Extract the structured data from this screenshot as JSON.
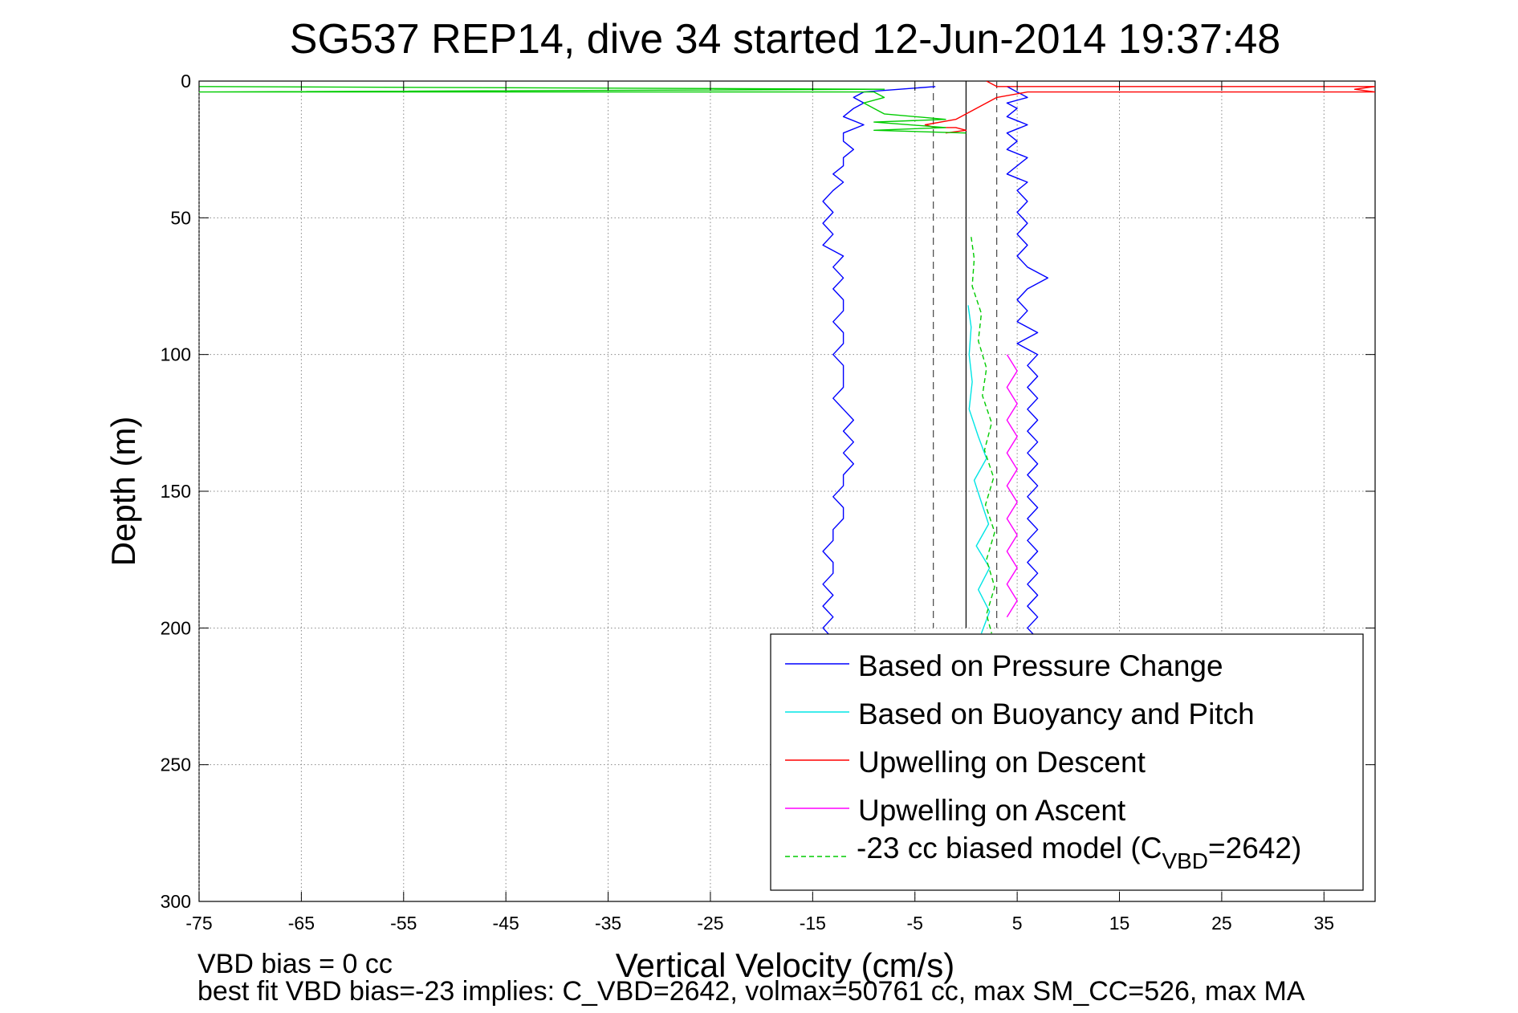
{
  "chart_data": {
    "type": "line",
    "title": "SG537 REP14, dive 34 started 12-Jun-2014 19:37:48",
    "xlabel": "Vertical Velocity (cm/s)",
    "ylabel": "Depth (m)",
    "xlim": [
      -75,
      40
    ],
    "ylim": [
      0,
      300
    ],
    "y_reversed": true,
    "grid": true,
    "x_ticks": [
      "-75",
      "-65",
      "-55",
      "-45",
      "-35",
      "-25",
      "-15",
      "-5",
      "5",
      "15",
      "25",
      "35"
    ],
    "x_tick_values": [
      -75,
      -65,
      -55,
      -45,
      -35,
      -25,
      -15,
      -5,
      5,
      15,
      25,
      35
    ],
    "y_ticks": [
      "0",
      "50",
      "100",
      "150",
      "200",
      "250",
      "300"
    ],
    "y_tick_values": [
      0,
      50,
      100,
      150,
      200,
      250,
      300
    ],
    "reference_lines": {
      "solid_x": 0,
      "dashed_x": [
        -3.2,
        3.0
      ],
      "dashed_y_range": [
        0,
        200
      ]
    },
    "legend_position": "bottom-right",
    "series": [
      {
        "name": "Based on Pressure Change",
        "color": "#0000ff",
        "style": "solid",
        "points": [
          [
            -3,
            2
          ],
          [
            -10,
            4
          ],
          [
            -11,
            6
          ],
          [
            -10,
            8
          ],
          [
            -11,
            10
          ],
          [
            -12,
            13
          ],
          [
            -10,
            16
          ],
          [
            -12,
            19
          ],
          [
            -12,
            22
          ],
          [
            -11,
            25
          ],
          [
            -12,
            28
          ],
          [
            -12,
            31
          ],
          [
            -13,
            34
          ],
          [
            -12,
            37
          ],
          [
            -13,
            40
          ],
          [
            -14,
            44
          ],
          [
            -13,
            48
          ],
          [
            -14,
            52
          ],
          [
            -13,
            56
          ],
          [
            -14,
            60
          ],
          [
            -12,
            64
          ],
          [
            -13,
            68
          ],
          [
            -12,
            72
          ],
          [
            -13,
            76
          ],
          [
            -12,
            80
          ],
          [
            -12,
            84
          ],
          [
            -13,
            88
          ],
          [
            -12,
            92
          ],
          [
            -12,
            96
          ],
          [
            -13,
            100
          ],
          [
            -12,
            104
          ],
          [
            -12,
            108
          ],
          [
            -12,
            112
          ],
          [
            -13,
            116
          ],
          [
            -12,
            120
          ],
          [
            -11,
            124
          ],
          [
            -12,
            128
          ],
          [
            -11,
            132
          ],
          [
            -12,
            136
          ],
          [
            -11,
            140
          ],
          [
            -12,
            144
          ],
          [
            -12,
            148
          ],
          [
            -13,
            152
          ],
          [
            -12,
            156
          ],
          [
            -12,
            160
          ],
          [
            -13,
            164
          ],
          [
            -13,
            168
          ],
          [
            -14,
            172
          ],
          [
            -13,
            176
          ],
          [
            -13,
            180
          ],
          [
            -14,
            184
          ],
          [
            -13,
            188
          ],
          [
            -14,
            192
          ],
          [
            -13,
            196
          ],
          [
            -14,
            200
          ],
          [
            -13,
            204
          ]
        ]
      },
      {
        "name": "",
        "color": "#0000ff",
        "style": "solid",
        "points": [
          [
            4,
            2
          ],
          [
            5,
            4
          ],
          [
            6,
            6
          ],
          [
            4,
            8
          ],
          [
            5,
            10
          ],
          [
            4,
            13
          ],
          [
            6,
            16
          ],
          [
            4,
            19
          ],
          [
            5,
            22
          ],
          [
            4,
            25
          ],
          [
            6,
            28
          ],
          [
            5,
            31
          ],
          [
            4,
            34
          ],
          [
            6,
            37
          ],
          [
            5,
            40
          ],
          [
            6,
            44
          ],
          [
            5,
            48
          ],
          [
            6,
            52
          ],
          [
            5,
            56
          ],
          [
            6,
            60
          ],
          [
            5,
            64
          ],
          [
            6,
            68
          ],
          [
            8,
            72
          ],
          [
            6,
            76
          ],
          [
            5,
            80
          ],
          [
            6,
            84
          ],
          [
            5,
            88
          ],
          [
            7,
            92
          ],
          [
            5,
            96
          ],
          [
            7,
            100
          ],
          [
            6,
            104
          ],
          [
            7,
            108
          ],
          [
            6,
            112
          ],
          [
            7,
            116
          ],
          [
            6,
            120
          ],
          [
            7,
            124
          ],
          [
            6,
            128
          ],
          [
            7,
            132
          ],
          [
            6,
            136
          ],
          [
            7,
            140
          ],
          [
            6,
            144
          ],
          [
            7,
            148
          ],
          [
            6,
            152
          ],
          [
            7,
            156
          ],
          [
            6,
            160
          ],
          [
            7,
            164
          ],
          [
            6,
            168
          ],
          [
            7,
            172
          ],
          [
            6,
            176
          ],
          [
            7,
            180
          ],
          [
            6,
            184
          ],
          [
            7,
            188
          ],
          [
            6,
            192
          ],
          [
            7,
            196
          ],
          [
            6,
            200
          ],
          [
            7,
            204
          ]
        ]
      },
      {
        "name": "Based on Buoyancy and Pitch",
        "color": "#00e5e5",
        "style": "solid",
        "points": [
          [
            0.2,
            82
          ],
          [
            0.5,
            90
          ],
          [
            0.3,
            100
          ],
          [
            0.6,
            110
          ],
          [
            0.3,
            120
          ],
          [
            1.2,
            130
          ],
          [
            2.0,
            138
          ],
          [
            0.8,
            146
          ],
          [
            1.5,
            154
          ],
          [
            2.2,
            162
          ],
          [
            1.0,
            170
          ],
          [
            2.3,
            178
          ],
          [
            1.2,
            186
          ],
          [
            2.3,
            194
          ],
          [
            1.5,
            202
          ]
        ]
      },
      {
        "name": "Upwelling on Descent",
        "color": "#ff0000",
        "style": "solid",
        "points": [
          [
            2,
            0
          ],
          [
            3,
            2
          ],
          [
            40,
            2
          ],
          [
            38,
            3
          ],
          [
            40,
            4
          ],
          [
            6,
            4
          ],
          [
            3,
            6
          ],
          [
            2,
            8
          ],
          [
            -1,
            14
          ],
          [
            -4,
            16
          ],
          [
            -3,
            17
          ],
          [
            -1,
            17
          ],
          [
            0,
            18
          ],
          [
            -2,
            19
          ]
        ]
      },
      {
        "name": "Upwelling on Ascent",
        "color": "#ff00ff",
        "style": "solid",
        "points": [
          [
            4,
            100
          ],
          [
            5,
            106
          ],
          [
            4,
            112
          ],
          [
            5,
            118
          ],
          [
            4,
            124
          ],
          [
            5,
            130
          ],
          [
            4,
            136
          ],
          [
            5,
            142
          ],
          [
            4,
            148
          ],
          [
            5,
            154
          ],
          [
            4,
            160
          ],
          [
            5,
            166
          ],
          [
            4,
            172
          ],
          [
            5,
            178
          ],
          [
            4,
            184
          ],
          [
            5,
            190
          ],
          [
            4,
            196
          ]
        ]
      },
      {
        "name": "-23 cc biased model (C_VBD=2642)",
        "color": "#00cc00",
        "style": "dashed",
        "points": [
          [
            0.5,
            57
          ],
          [
            0.8,
            65
          ],
          [
            0.6,
            75
          ],
          [
            1.5,
            85
          ],
          [
            1.2,
            95
          ],
          [
            2.0,
            105
          ],
          [
            1.6,
            115
          ],
          [
            2.5,
            125
          ],
          [
            1.8,
            135
          ],
          [
            2.7,
            145
          ],
          [
            1.9,
            155
          ],
          [
            2.8,
            165
          ],
          [
            2.0,
            175
          ],
          [
            2.8,
            185
          ],
          [
            2.0,
            195
          ],
          [
            2.5,
            202
          ]
        ]
      },
      {
        "name": "",
        "color": "#00cc00",
        "style": "solid",
        "points": [
          [
            -75,
            2
          ],
          [
            -8,
            3
          ],
          [
            -75,
            4
          ],
          [
            -9,
            4
          ],
          [
            -8,
            6
          ],
          [
            -10,
            8
          ],
          [
            -9,
            10
          ],
          [
            -8,
            12
          ],
          [
            -2,
            14
          ],
          [
            -9,
            15
          ],
          [
            -2,
            17
          ],
          [
            -9,
            18
          ],
          [
            0,
            19
          ]
        ]
      }
    ]
  },
  "legend": {
    "entries": [
      {
        "label": "Based on Pressure Change",
        "color": "#0000ff",
        "style": "solid"
      },
      {
        "label": "Based on Buoyancy and Pitch",
        "color": "#00e5e5",
        "style": "solid"
      },
      {
        "label": "Upwelling on Descent",
        "color": "#ff0000",
        "style": "solid"
      },
      {
        "label": "Upwelling on Ascent",
        "color": "#ff00ff",
        "style": "solid"
      },
      {
        "label_main": "-23 cc biased model (C",
        "label_sub": "VBD",
        "label_tail": "=2642)",
        "color": "#00cc00",
        "style": "dashed"
      }
    ]
  },
  "footer": {
    "line1": "VBD bias = 0 cc",
    "line2": "best fit VBD bias=-23 implies: C_VBD=2642, volmax=50761 cc, max SM_CC=526, max MA"
  }
}
